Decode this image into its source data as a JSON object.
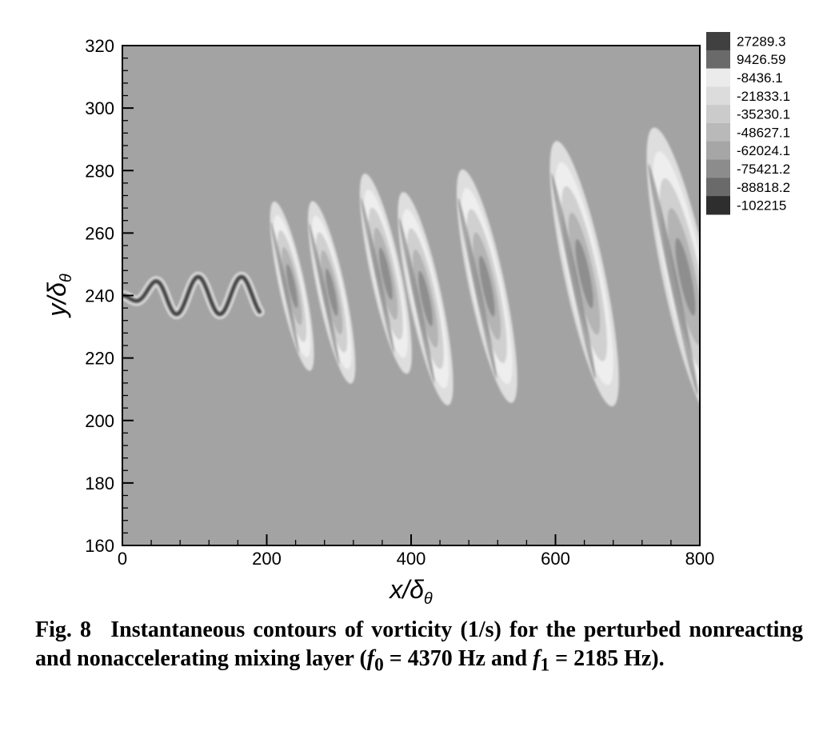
{
  "chart_data": {
    "type": "heatmap",
    "title": "",
    "xlabel": "x/δθ",
    "ylabel": "y/δθ",
    "xlim": [
      0,
      800
    ],
    "ylim": [
      160,
      320
    ],
    "x_ticks": [
      "0",
      "200",
      "400",
      "600",
      "800"
    ],
    "y_ticks": [
      "160",
      "180",
      "200",
      "220",
      "240",
      "260",
      "280",
      "300",
      "320"
    ],
    "grid": false,
    "legend_position": "top-right",
    "colorbar_levels": [
      "27289.3",
      "9426.59",
      "-8436.1",
      "-21833.1",
      "-35230.1",
      "-48627.1",
      "-62024.1",
      "-75421.2",
      "-88818.2",
      "-102215"
    ],
    "colorbar_colors": [
      "#404040",
      "#6a6a6a",
      "#ebebeb",
      "#dcdcdc",
      "#cbcbcb",
      "#b9b9b9",
      "#a6a6a6",
      "#8c8c8c",
      "#6a6a6a",
      "#2e2e2e"
    ],
    "background_color": "#a3a3a3",
    "annotations": [],
    "structures": [
      {
        "kind": "shear-layer",
        "x": 0,
        "y": 240
      },
      {
        "kind": "vortex",
        "x": 235,
        "y": 243
      },
      {
        "kind": "vortex",
        "x": 290,
        "y": 241
      },
      {
        "kind": "vortex",
        "x": 365,
        "y": 247
      },
      {
        "kind": "vortex",
        "x": 420,
        "y": 239
      },
      {
        "kind": "vortex",
        "x": 505,
        "y": 243
      },
      {
        "kind": "vortex",
        "x": 640,
        "y": 247
      },
      {
        "kind": "vortex",
        "x": 780,
        "y": 246
      }
    ]
  },
  "caption": {
    "label": "Fig. 8",
    "text_1": "Instantaneous contours of vorticity (1/s) for the perturbed nonreacting and nonaccelerating mixing layer (",
    "f0_symbol": "f",
    "f0_sub": "0",
    "f0_value": " = 4370 Hz  and ",
    "f1_symbol": "f",
    "f1_sub": "1",
    "f1_value": " = 2185 Hz)."
  }
}
